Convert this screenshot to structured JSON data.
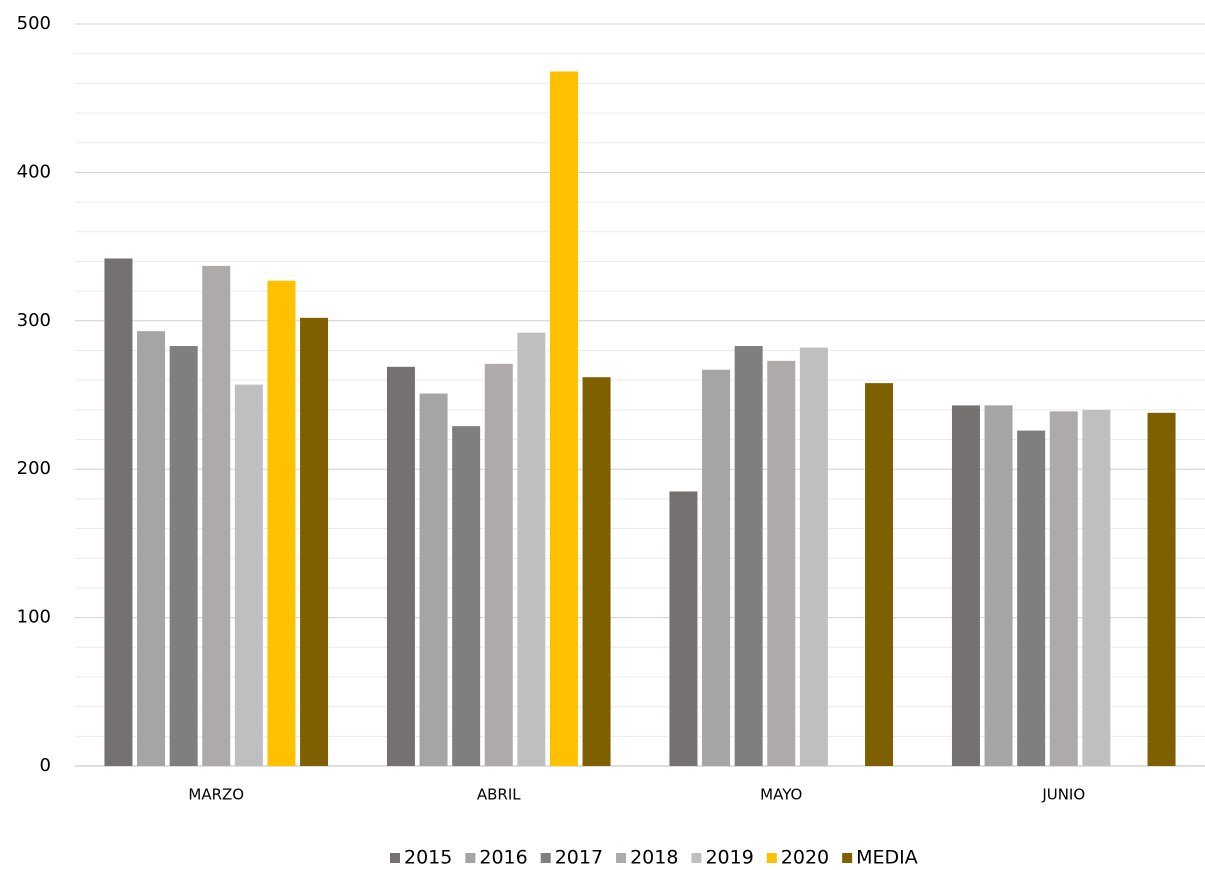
{
  "chart_data": {
    "type": "bar",
    "categories": [
      "MARZO",
      "ABRIL",
      "MAYO",
      "JUNIO"
    ],
    "series": [
      {
        "name": "2015",
        "color": "#767171",
        "values": [
          342,
          269,
          185,
          243
        ]
      },
      {
        "name": "2016",
        "color": "#a5a5a5",
        "values": [
          293,
          251,
          267,
          243
        ]
      },
      {
        "name": "2017",
        "color": "#7f7f7f",
        "values": [
          283,
          229,
          283,
          226
        ]
      },
      {
        "name": "2018",
        "color": "#aeaaaa",
        "values": [
          337,
          271,
          273,
          239
        ]
      },
      {
        "name": "2019",
        "color": "#bfbfbf",
        "values": [
          257,
          292,
          282,
          240
        ]
      },
      {
        "name": "2020",
        "color": "#ffc000",
        "values": [
          327,
          468,
          null,
          null
        ]
      },
      {
        "name": "MEDIA",
        "color": "#7f6000",
        "values": [
          302,
          262,
          258,
          238
        ]
      }
    ],
    "ylim": [
      0,
      500
    ],
    "yticks": [
      0,
      100,
      200,
      300,
      400,
      500
    ],
    "minor_yticks": [
      20,
      40,
      60,
      80,
      120,
      140,
      160,
      180,
      220,
      240,
      260,
      280,
      320,
      340,
      360,
      380,
      420,
      440,
      460,
      480
    ],
    "grid": true,
    "legend": "bottom"
  }
}
